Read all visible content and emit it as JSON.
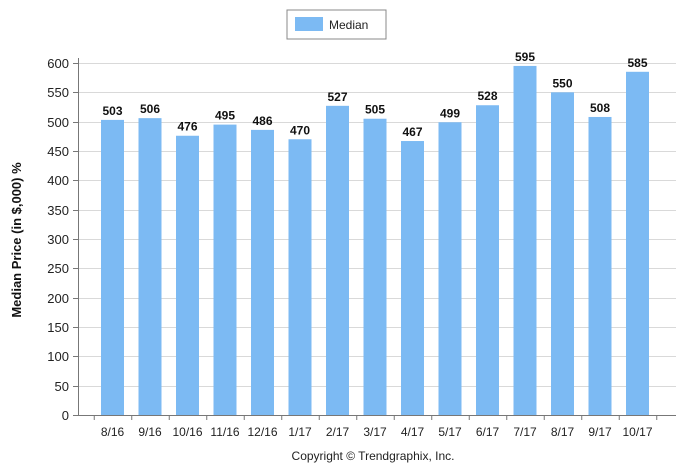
{
  "chart_data": {
    "type": "bar",
    "categories": [
      "8/16",
      "9/16",
      "10/16",
      "11/16",
      "12/16",
      "1/17",
      "2/17",
      "3/17",
      "4/17",
      "5/17",
      "6/17",
      "7/17",
      "8/17",
      "9/17",
      "10/17"
    ],
    "series": [
      {
        "name": "Median",
        "values": [
          503,
          506,
          476,
          495,
          486,
          470,
          527,
          505,
          467,
          499,
          528,
          595,
          550,
          508,
          585
        ],
        "color": "#7cbaf3"
      }
    ],
    "ylabel": "Median Price (in $,000) %",
    "xlabel": "",
    "ylim": [
      0,
      600
    ],
    "yticks": [
      0,
      50,
      100,
      150,
      200,
      250,
      300,
      350,
      400,
      450,
      500,
      550,
      600
    ],
    "grid": true,
    "legend_position": "top-center",
    "data_labels": true
  },
  "copyright": "Copyright © Trendgraphix, Inc."
}
